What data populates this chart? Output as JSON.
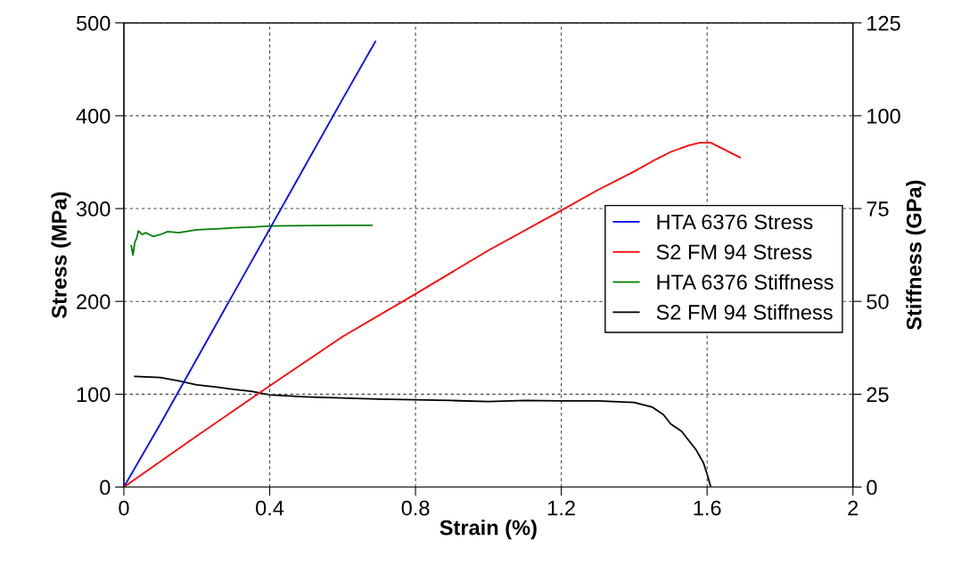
{
  "chart_data": {
    "type": "line",
    "xlabel": "Strain (%)",
    "ylabel": "Stress (MPa)",
    "y2label": "Stiffness (GPa)",
    "xlim": [
      0,
      2
    ],
    "xticks": [
      0,
      0.4,
      0.8,
      1.2,
      1.6,
      2
    ],
    "ylim": [
      0,
      500
    ],
    "yticks": [
      0,
      100,
      200,
      300,
      400,
      500
    ],
    "y2lim": [
      0,
      125
    ],
    "y2ticks": [
      0,
      25,
      50,
      75,
      100,
      125
    ],
    "grid": true,
    "legend": "right",
    "line_style": "solid",
    "marker": "none",
    "series": [
      {
        "name": "HTA 6376 Stress",
        "color": "#0000ff",
        "x": [
          0,
          0.1,
          0.2,
          0.3,
          0.4,
          0.5,
          0.6,
          0.69
        ],
        "values": [
          0,
          68,
          138,
          208,
          278,
          348,
          418,
          480
        ]
      },
      {
        "name": "S2 FM 94 Stress",
        "color": "#ff0000",
        "x": [
          0,
          0.2,
          0.4,
          0.6,
          0.8,
          1.0,
          1.2,
          1.3,
          1.4,
          1.45,
          1.5,
          1.55,
          1.58,
          1.61,
          1.65,
          1.69
        ],
        "values": [
          0,
          55,
          109,
          162,
          208,
          255,
          298,
          320,
          340,
          351,
          361,
          368,
          371,
          371,
          363,
          355
        ]
      },
      {
        "name": "HTA 6376 Stiffness",
        "color": "#008000",
        "axis": "y2",
        "x": [
          0.02,
          0.025,
          0.03,
          0.035,
          0.04,
          0.05,
          0.06,
          0.08,
          0.1,
          0.12,
          0.15,
          0.2,
          0.25,
          0.3,
          0.35,
          0.4,
          0.5,
          0.6,
          0.68
        ],
        "values": [
          65,
          62.5,
          66,
          67,
          69,
          68,
          68.5,
          67.5,
          68,
          68.8,
          68.5,
          69.3,
          69.5,
          69.8,
          70,
          70.3,
          70.4,
          70.5,
          70.5
        ],
        "line_style": "solid"
      },
      {
        "name": "S2 FM 94 Stiffness",
        "color": "#000000",
        "axis": "y2",
        "x": [
          0.03,
          0.1,
          0.15,
          0.2,
          0.25,
          0.3,
          0.35,
          0.4,
          0.5,
          0.6,
          0.7,
          0.8,
          0.9,
          1.0,
          1.1,
          1.2,
          1.3,
          1.4,
          1.45,
          1.48,
          1.5,
          1.53,
          1.55,
          1.57,
          1.59,
          1.6,
          1.61
        ],
        "values": [
          29.8,
          29.5,
          28.6,
          27.5,
          27,
          26.3,
          25.8,
          24.8,
          24.3,
          24,
          23.7,
          23.5,
          23.3,
          23,
          23.3,
          23.2,
          23.2,
          22.8,
          21.5,
          19.5,
          17,
          15,
          12.5,
          10,
          6.5,
          3.5,
          0
        ]
      }
    ]
  }
}
